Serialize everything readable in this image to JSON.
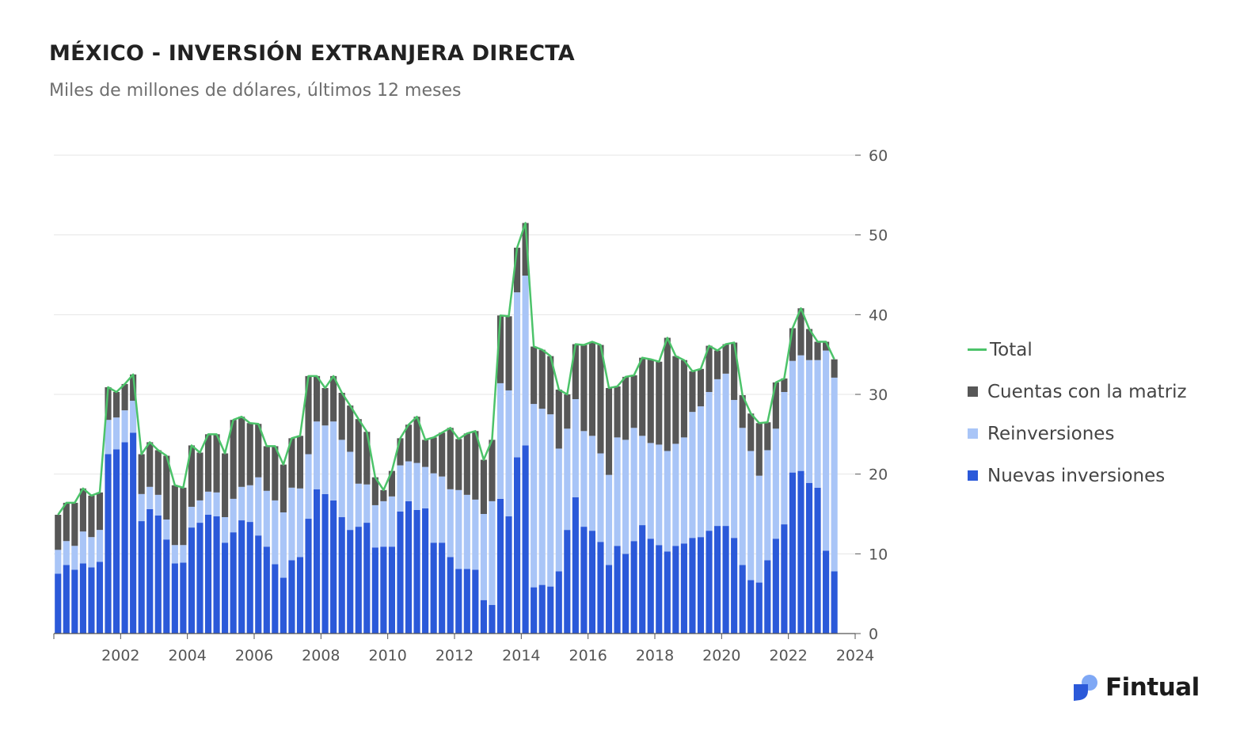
{
  "header": {
    "title": "MÉXICO - INVERSIÓN EXTRANJERA DIRECTA",
    "subtitle": "Miles de millones de dólares, últimos 12 meses"
  },
  "brand": {
    "name": "Fintual",
    "icon": "fintual-logo-icon"
  },
  "colors": {
    "nuevas": "#2b59d9",
    "reinversiones": "#a9c5f7",
    "cuentas": "#575757",
    "total": "#4cc36a",
    "grid": "#e6e6e6",
    "axis": "#555555"
  },
  "chart_data": {
    "type": "bar",
    "stacked": true,
    "title": "MÉXICO - INVERSIÓN EXTRANJERA DIRECTA",
    "subtitle": "Miles de millones de dólares, últimos 12 meses",
    "xlabel": "",
    "ylabel": "",
    "ylim": [
      0,
      60
    ],
    "yticks": [
      0,
      10,
      20,
      30,
      40,
      50,
      60
    ],
    "xlim": [
      2000,
      2024
    ],
    "xticks": [
      2002,
      2004,
      2006,
      2008,
      2010,
      2012,
      2014,
      2016,
      2018,
      2020,
      2022,
      2024
    ],
    "y_axis_side": "right",
    "grid": true,
    "legend_position": "right",
    "legend": [
      "Total",
      "Cuentas con la matriz",
      "Reinversiones",
      "Nuevas inversiones"
    ],
    "x_start": 2000.0,
    "x_step": 0.25,
    "series": [
      {
        "name": "Nuevas inversiones",
        "values": [
          7.5,
          8.6,
          8.0,
          8.8,
          8.3,
          9.0,
          22.5,
          23.1,
          24.0,
          25.2,
          14.1,
          15.6,
          14.8,
          11.8,
          8.8,
          8.9,
          13.3,
          13.9,
          14.9,
          14.7,
          11.4,
          12.7,
          14.2,
          14.0,
          12.3,
          10.9,
          8.7,
          7.0,
          9.2,
          9.6,
          14.4,
          18.1,
          17.5,
          16.7,
          14.6,
          13.0,
          13.4,
          13.9,
          10.8,
          10.9,
          10.9,
          15.3,
          16.6,
          15.5,
          15.7,
          11.4,
          11.4,
          9.6,
          8.1,
          8.1,
          8.0,
          4.2,
          3.6,
          16.9,
          14.7,
          22.1,
          23.6,
          5.8,
          6.1,
          5.9,
          7.8,
          13.0,
          17.1,
          13.4,
          12.9,
          11.5,
          8.6,
          11.0,
          10.0,
          11.6,
          13.6,
          11.9,
          11.1,
          10.3,
          11.0,
          11.3,
          12.0,
          12.1,
          12.9,
          13.5,
          13.5,
          12.0,
          8.6,
          6.7,
          6.4,
          9.2,
          11.9,
          13.7,
          20.2,
          20.4,
          18.9,
          18.3,
          10.4,
          7.8
        ]
      },
      {
        "name": "Reinversiones",
        "values": [
          3.0,
          3.0,
          3.0,
          4.0,
          3.8,
          4.0,
          4.3,
          4.0,
          4.0,
          4.0,
          3.4,
          2.8,
          2.6,
          2.5,
          2.3,
          2.2,
          2.6,
          2.8,
          2.9,
          3.0,
          3.2,
          4.2,
          4.2,
          4.6,
          7.3,
          7.0,
          8.0,
          8.2,
          9.1,
          8.6,
          8.1,
          8.5,
          8.6,
          9.9,
          9.7,
          9.8,
          5.4,
          4.8,
          5.3,
          5.7,
          6.3,
          5.8,
          5.0,
          5.9,
          5.2,
          8.7,
          8.3,
          8.5,
          9.9,
          9.3,
          8.8,
          10.8,
          13.0,
          14.5,
          15.8,
          20.7,
          21.3,
          23.0,
          22.1,
          21.6,
          15.4,
          12.7,
          12.3,
          12.0,
          11.9,
          11.1,
          11.3,
          13.6,
          14.3,
          14.2,
          11.2,
          12.0,
          12.6,
          12.6,
          12.8,
          13.3,
          15.8,
          16.4,
          17.4,
          18.4,
          19.1,
          17.3,
          17.2,
          16.2,
          13.4,
          13.8,
          13.8,
          16.6,
          14.0,
          14.5,
          15.4,
          16.0,
          25.1,
          24.3
        ]
      },
      {
        "name": "Cuentas con la matriz",
        "values": [
          4.4,
          4.8,
          5.4,
          5.4,
          5.2,
          4.7,
          4.1,
          3.2,
          3.3,
          3.3,
          5.0,
          5.6,
          5.6,
          8.0,
          7.5,
          7.2,
          7.7,
          6.0,
          7.2,
          7.3,
          8.0,
          9.9,
          8.8,
          7.8,
          6.7,
          5.6,
          6.8,
          6.0,
          6.2,
          6.6,
          9.8,
          5.7,
          4.7,
          5.7,
          5.9,
          5.8,
          8.1,
          6.6,
          3.5,
          1.4,
          3.2,
          3.4,
          4.6,
          5.8,
          3.4,
          4.5,
          5.5,
          7.7,
          6.4,
          7.7,
          8.6,
          6.8,
          7.7,
          8.5,
          9.3,
          5.6,
          6.6,
          7.2,
          7.4,
          7.3,
          7.4,
          4.3,
          6.9,
          10.8,
          11.8,
          13.6,
          10.9,
          6.4,
          7.9,
          6.6,
          9.8,
          10.5,
          10.4,
          14.2,
          11.0,
          9.7,
          5.1,
          4.7,
          5.8,
          3.6,
          3.7,
          7.2,
          4.1,
          4.7,
          6.6,
          3.5,
          5.8,
          1.7,
          4.1,
          5.9,
          3.9,
          2.3,
          1.1,
          2.3
        ]
      },
      {
        "name": "Total",
        "values": [
          14.9,
          16.4,
          16.4,
          18.2,
          17.3,
          17.7,
          30.9,
          30.3,
          31.3,
          32.5,
          22.5,
          24.0,
          23.0,
          22.3,
          18.6,
          18.3,
          23.6,
          22.7,
          25.0,
          25.0,
          22.6,
          26.8,
          27.2,
          26.4,
          26.3,
          23.5,
          23.5,
          21.2,
          24.5,
          24.8,
          32.3,
          32.3,
          30.8,
          32.3,
          30.2,
          28.6,
          26.9,
          25.3,
          19.6,
          18.0,
          20.4,
          24.5,
          26.2,
          27.2,
          24.3,
          24.6,
          25.2,
          25.8,
          24.4,
          25.1,
          25.4,
          21.8,
          24.3,
          39.9,
          39.8,
          48.4,
          51.5,
          36.0,
          35.6,
          34.8,
          30.6,
          30.0,
          36.3,
          36.2,
          36.6,
          36.2,
          30.8,
          31.0,
          32.2,
          32.4,
          34.6,
          34.4,
          34.1,
          37.1,
          34.8,
          34.3,
          32.9,
          33.2,
          36.1,
          35.5,
          36.3,
          36.5,
          29.9,
          27.6,
          26.4,
          26.5,
          31.5,
          32.0,
          38.3,
          40.8,
          38.2,
          36.6,
          36.6,
          34.4
        ]
      }
    ]
  }
}
